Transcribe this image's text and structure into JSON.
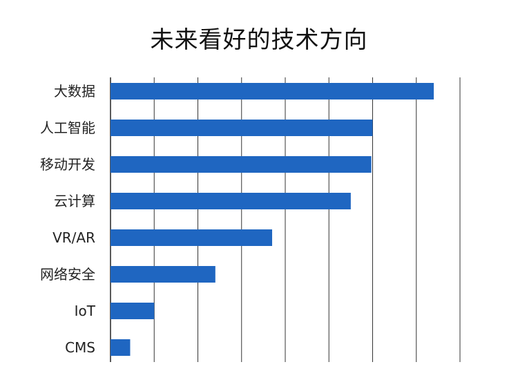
{
  "chart_data": {
    "type": "bar",
    "orientation": "horizontal",
    "title": "未来看好的技术方向",
    "xlabel": "",
    "ylabel": "",
    "categories": [
      "大数据",
      "人工智能",
      "移动开发",
      "云计算",
      "VR/AR",
      "网络安全",
      "IoT",
      "CMS"
    ],
    "values": [
      7.4,
      6.0,
      5.97,
      5.5,
      3.7,
      2.4,
      1.0,
      0.45
    ],
    "xlim": [
      0,
      8
    ],
    "grid": "vertical",
    "legend": "none",
    "bar_color": "#1f66c1",
    "grid_color": "#333333"
  }
}
